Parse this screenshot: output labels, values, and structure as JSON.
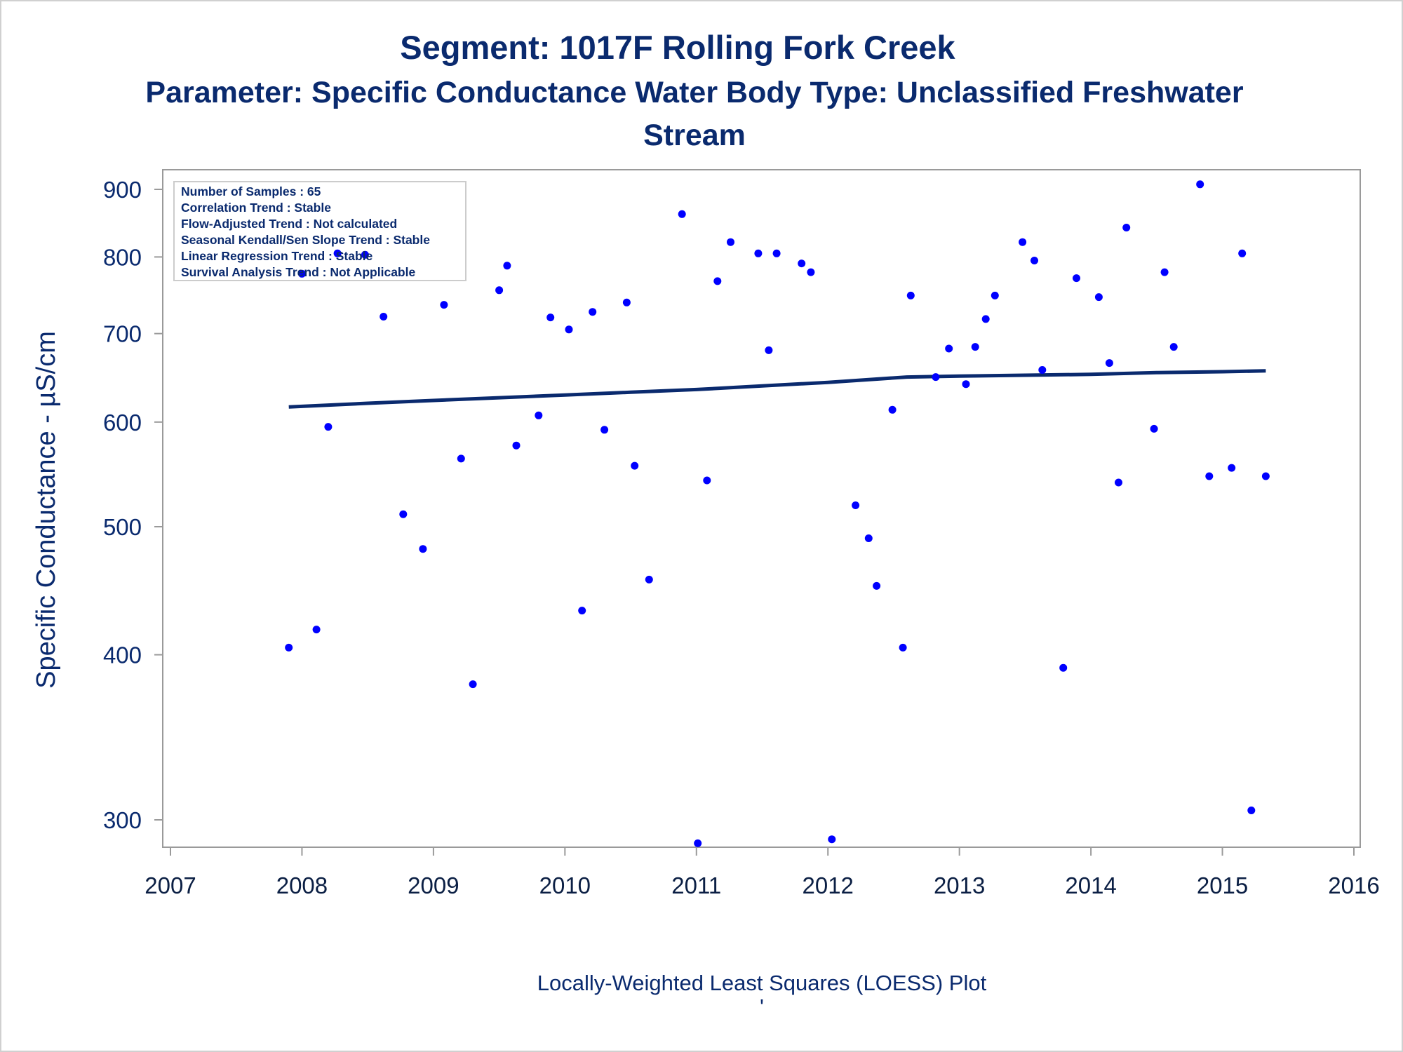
{
  "header": {
    "title": "Segment: 1017F  Rolling Fork Creek",
    "subtitle_line1": "Parameter: Specific Conductance   Water Body Type: Unclassified Freshwater",
    "subtitle_line2": "Stream"
  },
  "inset": {
    "lines": [
      "Number of Samples : 65",
      "Correlation Trend : Stable",
      "Flow-Adjusted Trend : Not calculated",
      "Seasonal Kendall/Sen Slope Trend : Stable",
      "Linear Regression Trend : Stable",
      "Survival Analysis Trend : Not Applicable"
    ]
  },
  "footer": {
    "note": "Locally-Weighted Least Squares (LOESS) Plot",
    "mark": "'"
  },
  "colors": {
    "points": "#0000ff",
    "trend_line": "#0a2a6e",
    "text": "#0a2a6e",
    "axis": "#9a9a9a"
  },
  "chart_data": {
    "type": "scatter",
    "title": "Segment: 1017F  Rolling Fork Creek",
    "xlabel": "",
    "ylabel": "Specific Conductance -  µS/cm",
    "y_scale": "log",
    "xlim": [
      2007,
      2016
    ],
    "ylim": [
      285,
      930
    ],
    "x_ticks": [
      "2007",
      "2008",
      "2009",
      "2010",
      "2011",
      "2012",
      "2013",
      "2014",
      "2015",
      "2016"
    ],
    "y_ticks": [
      "300",
      "400",
      "500",
      "600",
      "700",
      "800",
      "900"
    ],
    "grid": false,
    "series": [
      {
        "kind": "points",
        "points": [
          {
            "x": 2007.9,
            "y": 405
          },
          {
            "x": 2008.0,
            "y": 777
          },
          {
            "x": 2008.11,
            "y": 418
          },
          {
            "x": 2008.2,
            "y": 595
          },
          {
            "x": 2008.27,
            "y": 805
          },
          {
            "x": 2008.48,
            "y": 803
          },
          {
            "x": 2008.62,
            "y": 721
          },
          {
            "x": 2008.77,
            "y": 511
          },
          {
            "x": 2008.92,
            "y": 481
          },
          {
            "x": 2009.08,
            "y": 736
          },
          {
            "x": 2009.21,
            "y": 563
          },
          {
            "x": 2009.3,
            "y": 380
          },
          {
            "x": 2009.5,
            "y": 755
          },
          {
            "x": 2009.56,
            "y": 788
          },
          {
            "x": 2009.63,
            "y": 576
          },
          {
            "x": 2009.8,
            "y": 607
          },
          {
            "x": 2009.89,
            "y": 720
          },
          {
            "x": 2010.03,
            "y": 705
          },
          {
            "x": 2010.13,
            "y": 432
          },
          {
            "x": 2010.21,
            "y": 727
          },
          {
            "x": 2010.3,
            "y": 592
          },
          {
            "x": 2010.47,
            "y": 739
          },
          {
            "x": 2010.53,
            "y": 556
          },
          {
            "x": 2010.64,
            "y": 456
          },
          {
            "x": 2010.89,
            "y": 862
          },
          {
            "x": 2011.01,
            "y": 288
          },
          {
            "x": 2011.08,
            "y": 542
          },
          {
            "x": 2011.16,
            "y": 767
          },
          {
            "x": 2011.26,
            "y": 821
          },
          {
            "x": 2011.47,
            "y": 805
          },
          {
            "x": 2011.55,
            "y": 680
          },
          {
            "x": 2011.61,
            "y": 805
          },
          {
            "x": 2011.8,
            "y": 791
          },
          {
            "x": 2011.87,
            "y": 779
          },
          {
            "x": 2012.03,
            "y": 290
          },
          {
            "x": 2012.21,
            "y": 519
          },
          {
            "x": 2012.31,
            "y": 490
          },
          {
            "x": 2012.37,
            "y": 451
          },
          {
            "x": 2012.49,
            "y": 613
          },
          {
            "x": 2012.57,
            "y": 405
          },
          {
            "x": 2012.63,
            "y": 748
          },
          {
            "x": 2012.82,
            "y": 649
          },
          {
            "x": 2012.92,
            "y": 682
          },
          {
            "x": 2013.05,
            "y": 641
          },
          {
            "x": 2013.12,
            "y": 684
          },
          {
            "x": 2013.2,
            "y": 718
          },
          {
            "x": 2013.27,
            "y": 748
          },
          {
            "x": 2013.48,
            "y": 821
          },
          {
            "x": 2013.57,
            "y": 795
          },
          {
            "x": 2013.63,
            "y": 657
          },
          {
            "x": 2013.79,
            "y": 391
          },
          {
            "x": 2013.89,
            "y": 771
          },
          {
            "x": 2014.06,
            "y": 746
          },
          {
            "x": 2014.14,
            "y": 665
          },
          {
            "x": 2014.21,
            "y": 540
          },
          {
            "x": 2014.27,
            "y": 842
          },
          {
            "x": 2014.48,
            "y": 593
          },
          {
            "x": 2014.56,
            "y": 779
          },
          {
            "x": 2014.63,
            "y": 684
          },
          {
            "x": 2014.83,
            "y": 908
          },
          {
            "x": 2014.9,
            "y": 546
          },
          {
            "x": 2015.07,
            "y": 554
          },
          {
            "x": 2015.15,
            "y": 805
          },
          {
            "x": 2015.22,
            "y": 305
          },
          {
            "x": 2015.33,
            "y": 546
          }
        ]
      },
      {
        "kind": "line",
        "points": [
          {
            "x": 2007.9,
            "y": 616
          },
          {
            "x": 2008.5,
            "y": 620
          },
          {
            "x": 2009.0,
            "y": 623
          },
          {
            "x": 2009.5,
            "y": 626
          },
          {
            "x": 2010.0,
            "y": 629
          },
          {
            "x": 2010.5,
            "y": 632
          },
          {
            "x": 2011.0,
            "y": 635
          },
          {
            "x": 2011.5,
            "y": 639
          },
          {
            "x": 2012.0,
            "y": 643
          },
          {
            "x": 2012.6,
            "y": 649
          },
          {
            "x": 2013.0,
            "y": 650
          },
          {
            "x": 2013.5,
            "y": 651
          },
          {
            "x": 2014.0,
            "y": 652
          },
          {
            "x": 2014.5,
            "y": 654
          },
          {
            "x": 2015.0,
            "y": 655
          },
          {
            "x": 2015.33,
            "y": 656
          }
        ]
      }
    ]
  }
}
